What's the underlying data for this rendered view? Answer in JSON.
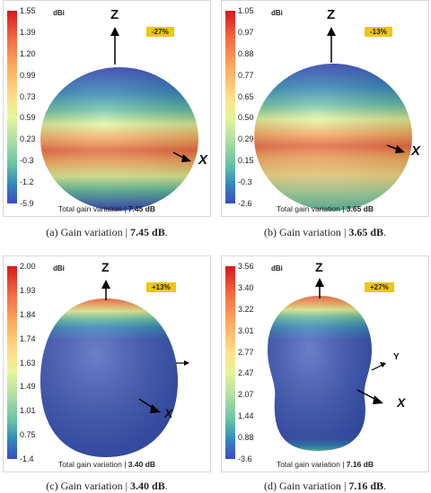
{
  "unit": "dBi",
  "panels": [
    {
      "badge": "-27%",
      "ticks": [
        "1.55",
        "1.39",
        "1.20",
        "0.99",
        "0.73",
        "0.59",
        "0.23",
        "-0.3",
        "-1.2",
        "-5.9"
      ],
      "footer_label": "Total gain variation |",
      "footer_value": "7.45 dB",
      "caption_prefix": "(a)",
      "caption_label": "Gain variation",
      "caption_value": "7.45 dB",
      "axis_labels": [
        "Z",
        "X"
      ]
    },
    {
      "badge": "-13%",
      "ticks": [
        "1.05",
        "0.97",
        "0.88",
        "0.77",
        "0.65",
        "0.50",
        "0.29",
        "0.15",
        "-0.3",
        "-2.6"
      ],
      "footer_label": "Total gain variation |",
      "footer_value": "3.65 dB",
      "caption_prefix": "(b)",
      "caption_label": "Gain variation",
      "caption_value": "3.65 dB",
      "axis_labels": [
        "Z",
        "X"
      ]
    },
    {
      "badge": "+13%",
      "ticks": [
        "2.00",
        "1.93",
        "1.84",
        "1.74",
        "1.63",
        "1.49",
        "1.01",
        "0.75",
        "-1.4"
      ],
      "footer_label": "Total gain variation |",
      "footer_value": "3.40 dB",
      "caption_prefix": "(c)",
      "caption_label": "Gain variation",
      "caption_value": "3.40 dB",
      "axis_labels": [
        "Z",
        "X"
      ]
    },
    {
      "badge": "+27%",
      "ticks": [
        "3.56",
        "3.40",
        "3.22",
        "3.01",
        "2.77",
        "2.47",
        "2.07",
        "1.44",
        "0.88",
        "-3.6"
      ],
      "footer_label": "Total gain variation |",
      "footer_value": "7.16 dB",
      "caption_prefix": "(d)",
      "caption_label": "Gain variation",
      "caption_value": "7.16 dB",
      "axis_labels": [
        "Z",
        "Y",
        "X"
      ]
    }
  ],
  "colors": {
    "colormap": [
      "#d7191c",
      "#f46d43",
      "#fdae61",
      "#fee08b",
      "#e6f598",
      "#abdda4",
      "#66c2a5",
      "#3288bd",
      "#3b4cc0"
    ],
    "body": "#3b55b8",
    "badge": "#f0c419"
  }
}
